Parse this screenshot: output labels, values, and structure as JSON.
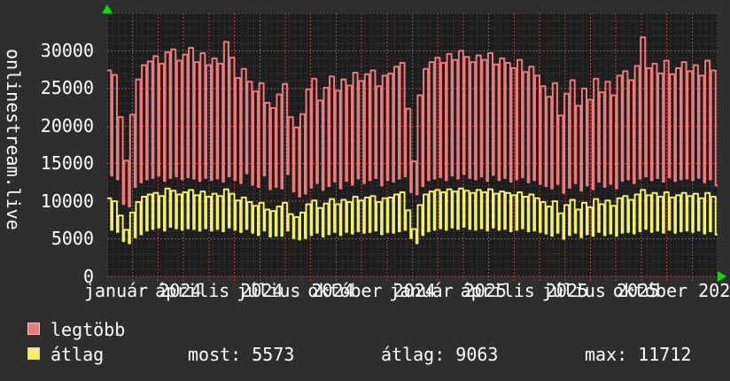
{
  "y_axis_title": "onlinestream.live",
  "legend": {
    "items": [
      {
        "label": "legtöbb",
        "color": "#f07878"
      },
      {
        "label": "átlag",
        "color": "#f0f060"
      }
    ],
    "stats": [
      {
        "text": "most: 5573"
      },
      {
        "text": "átlag: 9063"
      },
      {
        "text": "max: 11712"
      }
    ]
  },
  "chart_data": {
    "type": "line",
    "title": "",
    "ylabel": "onlinestream.live",
    "xlabel": "",
    "ylim": [
      0,
      35000
    ],
    "y_tick_step": 5000,
    "y_minor_step": 1000,
    "y_tick_labels": [
      "0",
      "5000",
      "10000",
      "15000",
      "20000",
      "25000",
      "30000"
    ],
    "x_tick_labels": [
      "január 2024",
      "április 2024",
      "július 2024",
      "október 2024",
      "január 2025",
      "április 2025",
      "július 2025",
      "október 2025"
    ],
    "x_range_months": 24,
    "weeks": 104,
    "grid": {
      "on": true,
      "minor_color": "#3e3e3e",
      "major_color": "#a84848",
      "plot_bg": "#1d1d1d"
    },
    "colors": {
      "axis_arrow": "#00dd00",
      "text": "#ffffff",
      "outer_bg": "#2e2e2e"
    },
    "legend_position": "bottom-left",
    "series": [
      {
        "name": "legtöbb",
        "color": "#f07878",
        "weekly_high_low": [
          [
            27400,
            13400
          ],
          [
            26800,
            12900
          ],
          [
            21200,
            9600
          ],
          [
            15400,
            9300
          ],
          [
            21500,
            11900
          ],
          [
            26200,
            12500
          ],
          [
            28100,
            12900
          ],
          [
            28600,
            13100
          ],
          [
            29300,
            13400
          ],
          [
            28300,
            12700
          ],
          [
            29800,
            13100
          ],
          [
            30200,
            13300
          ],
          [
            28700,
            12900
          ],
          [
            29500,
            13200
          ],
          [
            30400,
            13000
          ],
          [
            28500,
            12700
          ],
          [
            29700,
            13100
          ],
          [
            28100,
            12800
          ],
          [
            29000,
            13000
          ],
          [
            28300,
            12600
          ],
          [
            31200,
            13300
          ],
          [
            29100,
            12800
          ],
          [
            26400,
            12400
          ],
          [
            27600,
            13700
          ],
          [
            25900,
            12200
          ],
          [
            24600,
            11900
          ],
          [
            25700,
            13400
          ],
          [
            23100,
            11600
          ],
          [
            22400,
            11900
          ],
          [
            24200,
            11700
          ],
          [
            25600,
            13600
          ],
          [
            21200,
            11300
          ],
          [
            19800,
            10600
          ],
          [
            21600,
            11000
          ],
          [
            24900,
            11800
          ],
          [
            26300,
            12400
          ],
          [
            23400,
            11500
          ],
          [
            25100,
            12000
          ],
          [
            26600,
            12600
          ],
          [
            24700,
            11700
          ],
          [
            26200,
            12700
          ],
          [
            25400,
            12200
          ],
          [
            27100,
            13000
          ],
          [
            26000,
            12400
          ],
          [
            26900,
            12800
          ],
          [
            27400,
            13100
          ],
          [
            25300,
            12100
          ],
          [
            26700,
            12800
          ],
          [
            27000,
            12600
          ],
          [
            27900,
            13000
          ],
          [
            28400,
            13300
          ],
          [
            22300,
            11200
          ],
          [
            15300,
            10900
          ],
          [
            24100,
            12000
          ],
          [
            27600,
            12800
          ],
          [
            28500,
            13000
          ],
          [
            29100,
            13200
          ],
          [
            28400,
            12800
          ],
          [
            29600,
            13400
          ],
          [
            28800,
            13000
          ],
          [
            30000,
            13600
          ],
          [
            29200,
            13100
          ],
          [
            28500,
            12900
          ],
          [
            29400,
            13300
          ],
          [
            28800,
            12700
          ],
          [
            29700,
            13500
          ],
          [
            28200,
            12800
          ],
          [
            29000,
            13100
          ],
          [
            28400,
            12600
          ],
          [
            27700,
            12900
          ],
          [
            28800,
            13200
          ],
          [
            27200,
            12500
          ],
          [
            27900,
            12800
          ],
          [
            26700,
            12300
          ],
          [
            25300,
            12000
          ],
          [
            23900,
            11700
          ],
          [
            25700,
            12300
          ],
          [
            21400,
            11100
          ],
          [
            24300,
            11800
          ],
          [
            26100,
            12400
          ],
          [
            22700,
            11400
          ],
          [
            25000,
            12100
          ],
          [
            23500,
            11600
          ],
          [
            26300,
            12600
          ],
          [
            24500,
            11900
          ],
          [
            25900,
            12300
          ],
          [
            24100,
            11700
          ],
          [
            26700,
            12700
          ],
          [
            27300,
            12900
          ],
          [
            26100,
            12400
          ],
          [
            28000,
            13000
          ],
          [
            31800,
            13300
          ],
          [
            27700,
            12800
          ],
          [
            28300,
            13100
          ],
          [
            27000,
            12600
          ],
          [
            28700,
            13200
          ],
          [
            26900,
            12700
          ],
          [
            27700,
            12900
          ],
          [
            28500,
            13000
          ],
          [
            27300,
            12800
          ],
          [
            28100,
            13100
          ],
          [
            26700,
            12500
          ],
          [
            28700,
            12900
          ],
          [
            27400,
            12100
          ]
        ]
      },
      {
        "name": "átlag",
        "color": "#f0f060",
        "weekly_high_low": [
          [
            10400,
            6200
          ],
          [
            10000,
            5900
          ],
          [
            8100,
            4700
          ],
          [
            6200,
            4400
          ],
          [
            8500,
            5200
          ],
          [
            9900,
            5600
          ],
          [
            10600,
            6100
          ],
          [
            10900,
            6300
          ],
          [
            11100,
            6500
          ],
          [
            10700,
            6100
          ],
          [
            11700,
            6600
          ],
          [
            11400,
            6400
          ],
          [
            10900,
            6200
          ],
          [
            11200,
            6400
          ],
          [
            11500,
            6300
          ],
          [
            10800,
            6100
          ],
          [
            11300,
            6400
          ],
          [
            10600,
            6100
          ],
          [
            11000,
            6300
          ],
          [
            10700,
            6000
          ],
          [
            11600,
            6500
          ],
          [
            11000,
            6200
          ],
          [
            10100,
            5900
          ],
          [
            10500,
            6300
          ],
          [
            9900,
            5800
          ],
          [
            9400,
            5500
          ],
          [
            9800,
            6100
          ],
          [
            8900,
            5300
          ],
          [
            8700,
            5400
          ],
          [
            9300,
            5400
          ],
          [
            9800,
            6100
          ],
          [
            8300,
            5100
          ],
          [
            7900,
            4900
          ],
          [
            8500,
            5100
          ],
          [
            9600,
            5500
          ],
          [
            10100,
            5800
          ],
          [
            9100,
            5300
          ],
          [
            9700,
            5600
          ],
          [
            10300,
            5900
          ],
          [
            9600,
            5500
          ],
          [
            10200,
            5900
          ],
          [
            9900,
            5700
          ],
          [
            10600,
            6000
          ],
          [
            10100,
            5800
          ],
          [
            10500,
            5900
          ],
          [
            10700,
            6100
          ],
          [
            9900,
            5600
          ],
          [
            10400,
            5900
          ],
          [
            10500,
            5800
          ],
          [
            10900,
            6000
          ],
          [
            11200,
            6200
          ],
          [
            8800,
            5100
          ],
          [
            6300,
            4400
          ],
          [
            9500,
            5500
          ],
          [
            10900,
            6000
          ],
          [
            11300,
            6200
          ],
          [
            11500,
            6400
          ],
          [
            11200,
            6200
          ],
          [
            11600,
            6500
          ],
          [
            11300,
            6300
          ],
          [
            11700,
            6600
          ],
          [
            11400,
            6300
          ],
          [
            11100,
            6200
          ],
          [
            11500,
            6400
          ],
          [
            11200,
            6100
          ],
          [
            11600,
            6500
          ],
          [
            11000,
            6200
          ],
          [
            11300,
            6300
          ],
          [
            11100,
            6000
          ],
          [
            10800,
            6200
          ],
          [
            11200,
            6400
          ],
          [
            10600,
            6000
          ],
          [
            10900,
            6100
          ],
          [
            10400,
            5900
          ],
          [
            9900,
            5700
          ],
          [
            9300,
            5400
          ],
          [
            10000,
            5800
          ],
          [
            8400,
            5000
          ],
          [
            9500,
            5500
          ],
          [
            10200,
            5800
          ],
          [
            8900,
            5200
          ],
          [
            9800,
            5600
          ],
          [
            9200,
            5400
          ],
          [
            10300,
            5900
          ],
          [
            9600,
            5500
          ],
          [
            10100,
            5700
          ],
          [
            9400,
            5400
          ],
          [
            10400,
            5800
          ],
          [
            10700,
            5900
          ],
          [
            10200,
            5700
          ],
          [
            10900,
            6000
          ],
          [
            11500,
            6300
          ],
          [
            10800,
            5900
          ],
          [
            11100,
            6100
          ],
          [
            10600,
            5800
          ],
          [
            11200,
            6200
          ],
          [
            10500,
            5800
          ],
          [
            10800,
            6000
          ],
          [
            11100,
            6100
          ],
          [
            10700,
            5900
          ],
          [
            11000,
            6100
          ],
          [
            10400,
            5700
          ],
          [
            11100,
            6000
          ],
          [
            10600,
            5573
          ]
        ]
      }
    ]
  }
}
